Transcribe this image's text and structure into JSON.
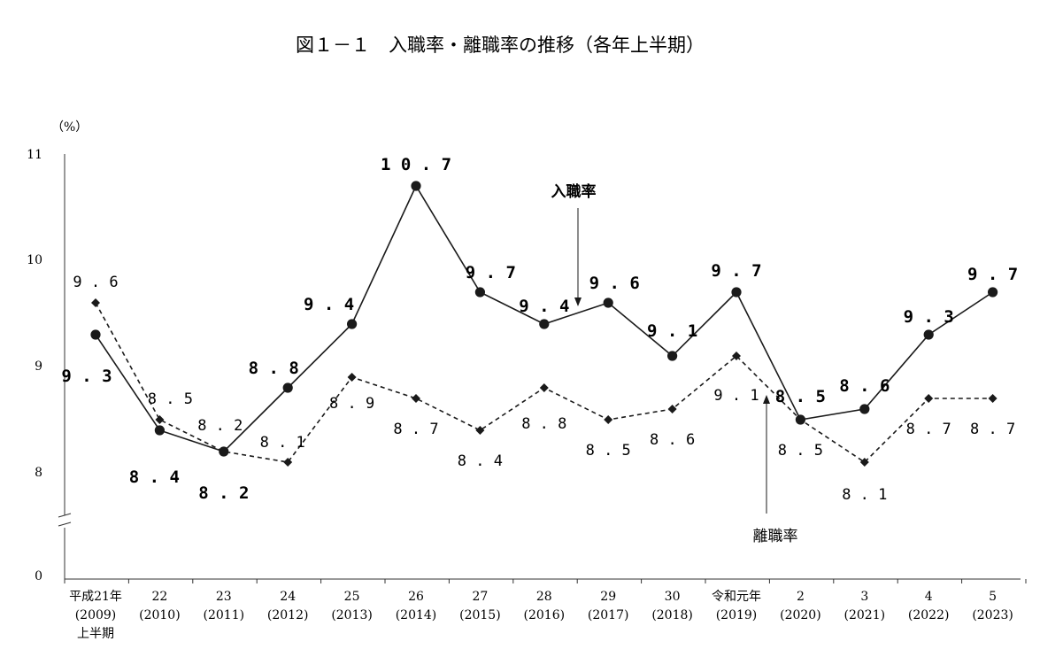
{
  "chart_data": {
    "type": "line",
    "title": "図１－１　入職率・離職率の推移（各年上半期）",
    "unit_label": "（%）",
    "y_ticks": [
      "0",
      "8",
      "9",
      "10",
      "11"
    ],
    "ylim": [
      8,
      11
    ],
    "y_axis_broken": true,
    "grid": false,
    "categories": [
      [
        "平成21年",
        "(2009)",
        "上半期"
      ],
      [
        "22",
        "(2010)"
      ],
      [
        "23",
        "(2011)"
      ],
      [
        "24",
        "(2012)"
      ],
      [
        "25",
        "(2013)"
      ],
      [
        "26",
        "(2014)"
      ],
      [
        "27",
        "(2015)"
      ],
      [
        "28",
        "(2016)"
      ],
      [
        "29",
        "(2017)"
      ],
      [
        "30",
        "(2018)"
      ],
      [
        "令和元年",
        "(2019)"
      ],
      [
        "2",
        "(2020)"
      ],
      [
        "3",
        "(2021)"
      ],
      [
        "4",
        "(2022)"
      ],
      [
        "5",
        "(2023)"
      ]
    ],
    "series": [
      {
        "name": "入職率",
        "line_style": "solid",
        "marker": "circle",
        "values": [
          9.3,
          8.4,
          8.2,
          8.8,
          9.4,
          10.7,
          9.7,
          9.4,
          9.6,
          9.1,
          9.7,
          8.5,
          8.6,
          9.3,
          9.7
        ],
        "labels": [
          "9.3",
          "8.4",
          "8.2",
          "8.8",
          "9.4",
          "10.7",
          "9.7",
          "9.4",
          "9.6",
          "9.1",
          "9.7",
          "8.5",
          "8.6",
          "9.3",
          "9.7"
        ]
      },
      {
        "name": "離職率",
        "line_style": "dashed",
        "marker": "diamond",
        "values": [
          9.6,
          8.5,
          8.2,
          8.1,
          8.9,
          8.7,
          8.4,
          8.8,
          8.5,
          8.6,
          9.1,
          8.5,
          8.1,
          8.7,
          8.7
        ],
        "labels": [
          "9.6",
          "8.5",
          "8.2",
          "8.1",
          "8.9",
          "8.7",
          "8.4",
          "8.8",
          "8.5",
          "8.6",
          "9.1",
          "8.5",
          "8.1",
          "8.7",
          "8.7"
        ]
      }
    ],
    "colors": {
      "line": "#1a1a1a",
      "axis": "#333333"
    }
  }
}
